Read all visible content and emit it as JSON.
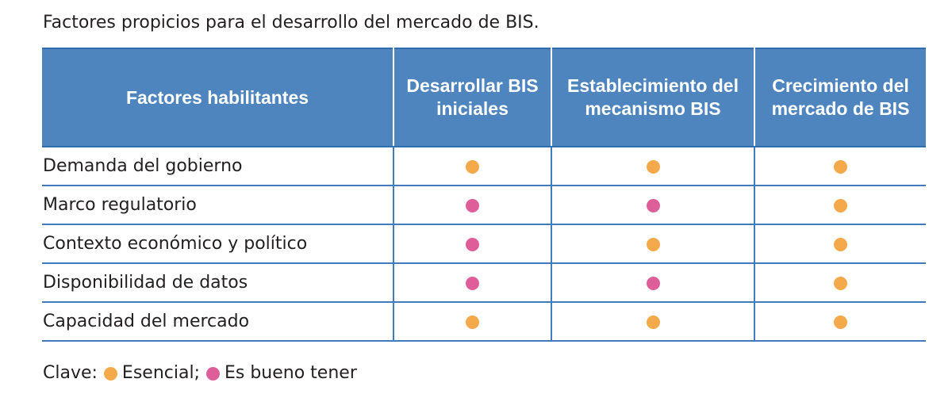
{
  "caption": "Factores propicios para el desarrollo del mercado de BIS.",
  "colors": {
    "essential": "#f4a94a",
    "nice_to_have": "#de5e9a",
    "header_bg": "#4f85bf",
    "rule": "#3f7bbd"
  },
  "table": {
    "headers": [
      "Factores habilitantes",
      "Desarrollar BIS iniciales",
      "Establecimiento del mecanismo BIS",
      "Crecimiento del mercado de BIS"
    ],
    "rows": [
      {
        "factor": "Demanda del gobierno",
        "levels": [
          "essential",
          "essential",
          "essential"
        ]
      },
      {
        "factor": "Marco regulatorio",
        "levels": [
          "nice_to_have",
          "nice_to_have",
          "essential"
        ]
      },
      {
        "factor": "Contexto económico y político",
        "levels": [
          "nice_to_have",
          "essential",
          "essential"
        ]
      },
      {
        "factor": "Disponibilidad de datos",
        "levels": [
          "nice_to_have",
          "nice_to_have",
          "essential"
        ]
      },
      {
        "factor": "Capacidad del mercado",
        "levels": [
          "essential",
          "essential",
          "essential"
        ]
      }
    ]
  },
  "legend": {
    "prefix": "Clave:",
    "essential_label": "Esencial;",
    "nice_label": "Es bueno tener"
  }
}
